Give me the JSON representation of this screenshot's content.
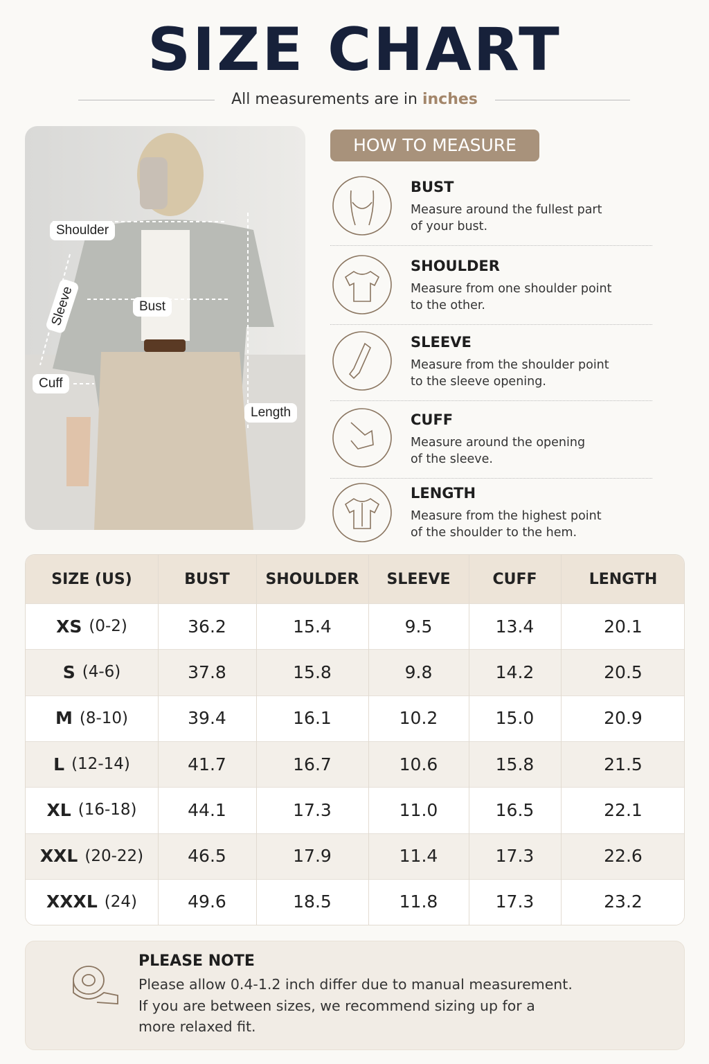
{
  "header": {
    "title": "SIZE CHART",
    "subtitle": "All measurements are in",
    "unit": "inches"
  },
  "photo": {
    "labels": {
      "shoulder": "Shoulder",
      "sleeve": "Sleeve",
      "bust": "Bust",
      "cuff": "Cuff",
      "length": "Length"
    }
  },
  "how_to_measure": {
    "title": "HOW TO MEASURE",
    "items": [
      {
        "title": "BUST",
        "lines": [
          "Measure around the fullest part",
          "of your bust."
        ]
      },
      {
        "title": "SHOULDER",
        "lines": [
          "Measure from one shoulder point",
          "to the other."
        ]
      },
      {
        "title": "SLEEVE",
        "lines": [
          "Measure from the shoulder point",
          "to the sleeve opening."
        ]
      },
      {
        "title": "CUFF",
        "lines": [
          "Measure around the opening",
          "of the sleeve."
        ]
      },
      {
        "title": "LENGTH",
        "lines": [
          "Measure from the highest point",
          "of the shoulder to the hem."
        ]
      }
    ]
  },
  "table": {
    "header": [
      "SIZE (US)",
      "BUST",
      "SHOULDER",
      "SLEEVE",
      "CUFF",
      "LENGTH"
    ],
    "rows": [
      [
        "XS",
        "(0-2)",
        "36.2",
        "15.4",
        "9.5",
        "13.4",
        "20.1"
      ],
      [
        "S",
        "(4-6)",
        "37.8",
        "15.8",
        "9.8",
        "14.2",
        "20.5"
      ],
      [
        "M",
        "(8-10)",
        "39.4",
        "16.1",
        "10.2",
        "15.0",
        "20.9"
      ],
      [
        "L",
        "(12-14)",
        "41.7",
        "16.7",
        "10.6",
        "15.8",
        "21.5"
      ],
      [
        "XL",
        "(16-18)",
        "44.1",
        "17.3",
        "11.0",
        "16.5",
        "22.1"
      ],
      [
        "XXL",
        "(20-22)",
        "46.5",
        "17.9",
        "11.4",
        "17.3",
        "22.6"
      ],
      [
        "XXXL",
        "(24)",
        "49.6",
        "18.5",
        "11.8",
        "17.3",
        "23.2"
      ]
    ]
  },
  "note": {
    "title": "PLEASE NOTE",
    "lines": [
      "Please allow 0.4-1.2 inch differ due to manual measurement.",
      "If you are between sizes, we recommend sizing up for a",
      "more relaxed fit."
    ]
  }
}
